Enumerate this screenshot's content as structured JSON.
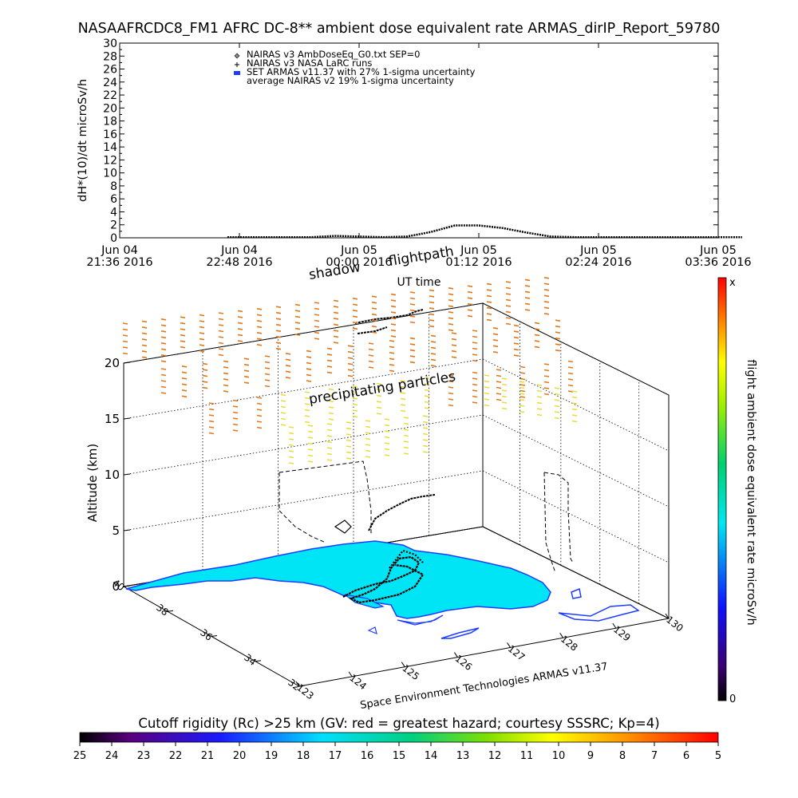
{
  "title": "NASAAFRCDC8_FM1 AFRC DC-8** ambient dose equivalent rate ARMAS_dirIP_Report_59780",
  "chart_data": [
    {
      "type": "line",
      "ylabel": "dH*(10)/dt microSv/h",
      "xlabel": "UT time",
      "ylim": [
        0,
        30
      ],
      "yticks": [
        "0",
        "2",
        "4",
        "6",
        "8",
        "10",
        "12",
        "14",
        "16",
        "18",
        "20",
        "22",
        "24",
        "26",
        "28",
        "30"
      ],
      "xticks": [
        {
          "l1": "Jun 04",
          "l2": "21:36 2016"
        },
        {
          "l1": "Jun 04",
          "l2": "22:48 2016"
        },
        {
          "l1": "Jun 05",
          "l2": "00:00 2016"
        },
        {
          "l1": "Jun 05",
          "l2": "01:12 2016"
        },
        {
          "l1": "Jun 05",
          "l2": "02:24 2016"
        },
        {
          "l1": "Jun 05",
          "l2": "03:36 2016"
        }
      ],
      "legend": [
        {
          "marker": "diamond",
          "label": "NAIRAS v3 AmbDoseEq_G0.txt SEP=0"
        },
        {
          "marker": "plus",
          "label": "NAIRAS v3 NASA LaRC runs"
        },
        {
          "marker": "blue-bar",
          "label": "SET ARMAS v11.37 with 27% 1-sigma uncertainty"
        },
        {
          "marker": "none",
          "label": "average NAIRAS v2 19% 1-sigma uncertainty"
        }
      ],
      "legend_position": "top-left",
      "series": [
        {
          "x": [
            0.0,
            0.3,
            0.55,
            0.8,
            0.9,
            1.0,
            1.2,
            1.4,
            1.6,
            1.8,
            2.0,
            2.2,
            2.4,
            2.6,
            2.8,
            3.0,
            3.2,
            3.4,
            3.6,
            3.8,
            4.0,
            4.2,
            4.4,
            4.6,
            4.8,
            5.0,
            5.2,
            5.4,
            5.6,
            5.8,
            6.0
          ],
          "values": [
            null,
            null,
            null,
            null,
            0.1,
            0.1,
            0.1,
            0.1,
            0.1,
            0.3,
            0.2,
            0.1,
            0.2,
            0.9,
            1.9,
            1.9,
            1.5,
            0.8,
            0.2,
            0.1,
            0.1,
            0.1,
            0.1,
            0.1,
            0.1,
            0.1,
            0.1,
            null,
            null,
            null,
            null
          ]
        }
      ]
    },
    {
      "type": "scatter",
      "zlabel": "Altitude (km)",
      "zticks": [
        "0",
        "5",
        "10",
        "15",
        "20"
      ],
      "lat_ticks": [
        "40",
        "38",
        "36",
        "34",
        "32"
      ],
      "lon_ticks": [
        "123",
        "124",
        "125",
        "126",
        "127",
        "128",
        "129",
        "130"
      ],
      "annotations": {
        "shadow": "shadow",
        "flightpath": "flightpath",
        "precipitating": "precipitating particles",
        "software": "Space Environment Technologies ARMAS v11.37"
      },
      "colorbar_label": "flight ambient dose equivalent rate microSv/h",
      "colorbar_max": "x",
      "colorbar_min": "0"
    }
  ],
  "rigidity": {
    "label": "Cutoff rigidity (Rc) >25 km (GV: red = greatest hazard; courtesy SSSRC; Kp=4)",
    "ticks": [
      "25",
      "24",
      "23",
      "22",
      "21",
      "20",
      "19",
      "18",
      "17",
      "16",
      "15",
      "14",
      "13",
      "12",
      "11",
      "10",
      "9",
      "8",
      "7",
      "6",
      "5"
    ]
  },
  "colors": {
    "land": "#00E5F5",
    "coast": "#1E3CFF",
    "arrow_orange": "#E0781E",
    "arrow_yellow": "#E8DC3C"
  }
}
